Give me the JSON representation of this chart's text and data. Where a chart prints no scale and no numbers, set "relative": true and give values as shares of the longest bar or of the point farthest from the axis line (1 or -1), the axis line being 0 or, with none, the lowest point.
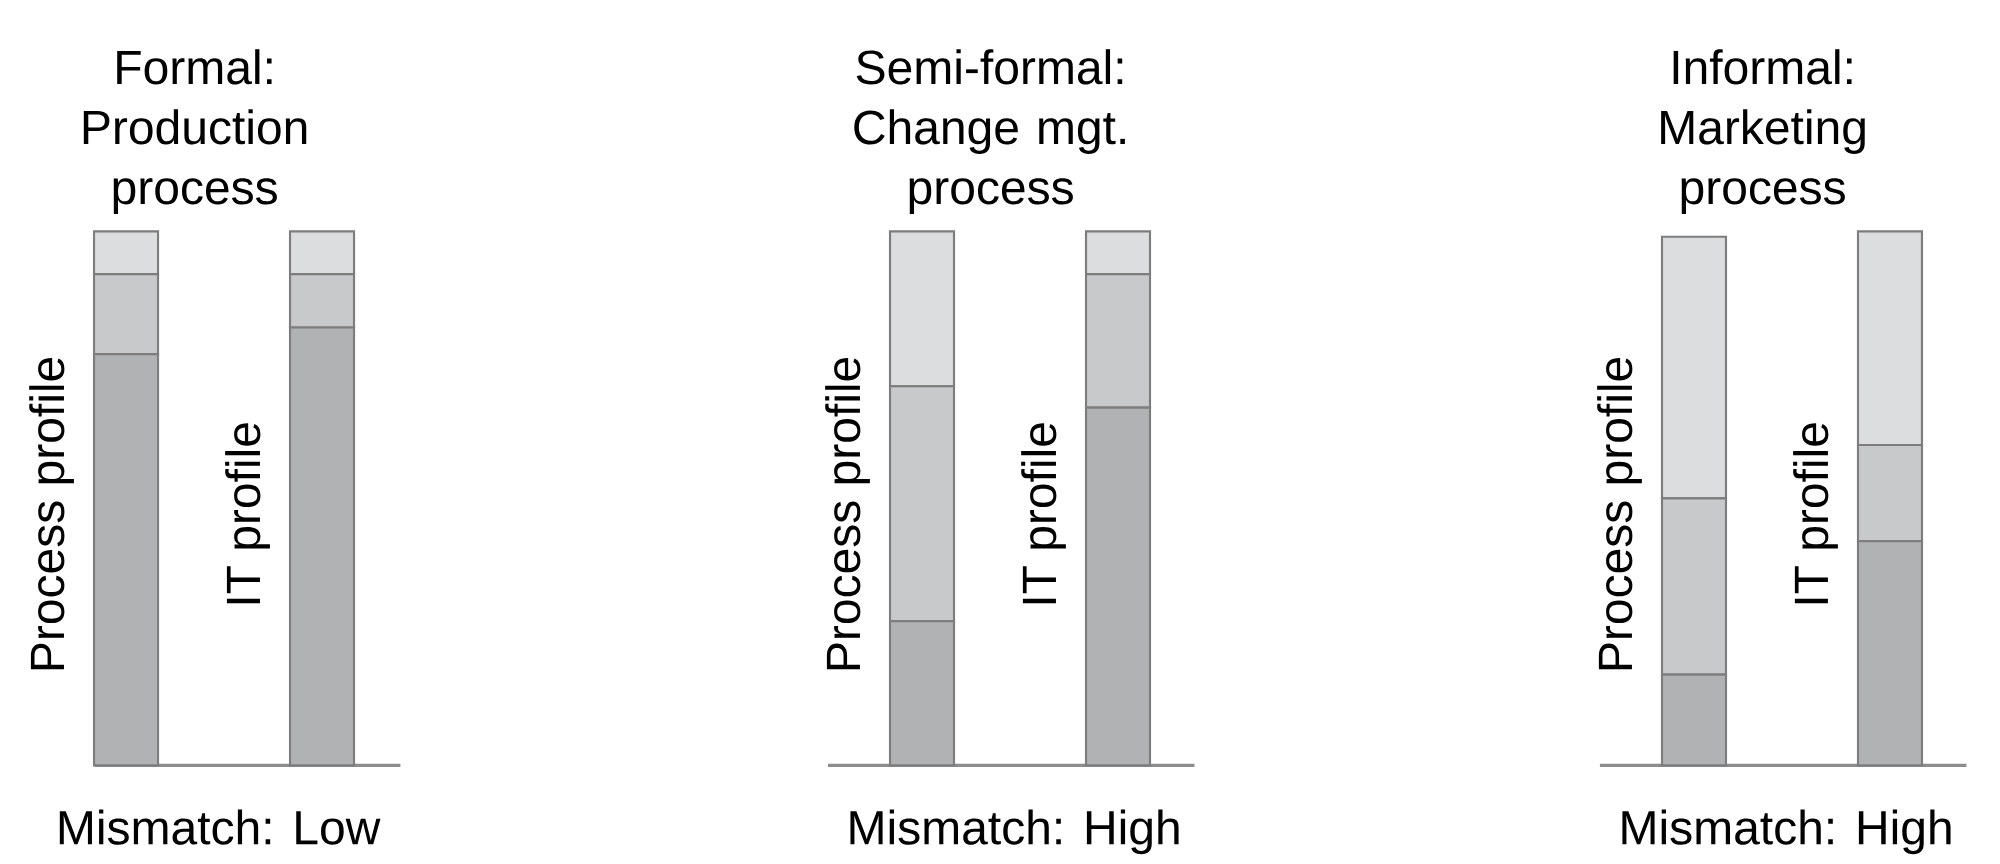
{
  "chart_data": [
    {
      "type": "bar",
      "stacked": true,
      "relative": true,
      "title": "Formal: Production process",
      "xlabel": "Mismatch: Low",
      "categories": [
        "Process profile",
        "IT profile"
      ],
      "series": [
        {
          "color": "#b1b2b4",
          "values": [
            0.77,
            0.82
          ]
        },
        {
          "color": "#c8c9cb",
          "values": [
            0.15,
            0.1
          ]
        },
        {
          "color": "#dcdddf",
          "values": [
            0.08,
            0.08
          ]
        }
      ]
    },
    {
      "type": "bar",
      "stacked": true,
      "relative": true,
      "title": "Semi-formal: Change mgt. process",
      "xlabel": "Mismatch: High",
      "categories": [
        "Process profile",
        "IT profile"
      ],
      "series": [
        {
          "color": "#b1b2b4",
          "values": [
            0.27,
            0.67
          ]
        },
        {
          "color": "#c8c9cb",
          "values": [
            0.44,
            0.25
          ]
        },
        {
          "color": "#dcdddf",
          "values": [
            0.29,
            0.08
          ]
        }
      ]
    },
    {
      "type": "bar",
      "stacked": true,
      "relative": true,
      "title": "Informal: Marketing process",
      "xlabel": "Mismatch: High",
      "categories": [
        "Process profile",
        "IT profile"
      ],
      "series": [
        {
          "color": "#b1b2b4",
          "values": [
            0.17,
            0.42
          ]
        },
        {
          "color": "#c8c9cb",
          "values": [
            0.33,
            0.18
          ]
        },
        {
          "color": "#dcdddf",
          "values": [
            0.49,
            0.4
          ]
        }
      ]
    }
  ]
}
